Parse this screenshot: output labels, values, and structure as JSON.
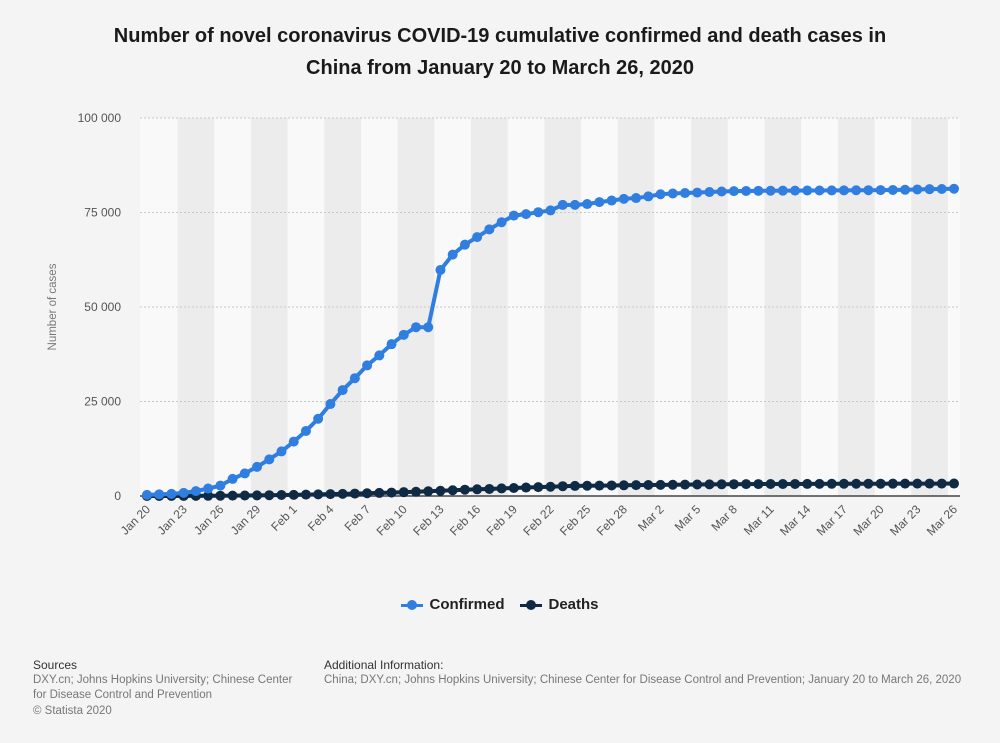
{
  "title_line1": "Number of novel coronavirus COVID-19 cumulative confirmed and death cases in",
  "title_line2": "China from January 20 to March 26, 2020",
  "footer": {
    "sources_heading": "Sources",
    "sources_text": "DXY.cn; Johns Hopkins University; Chinese Center for Disease Control and Prevention",
    "copyright": "© Statista 2020",
    "info_heading": "Additional Information:",
    "info_text": "China; DXY.cn; Johns Hopkins University; Chinese Center for Disease Control and Prevention; January 20 to March 26, 2020"
  },
  "colors": {
    "confirmed": "#2f7ee0",
    "deaths": "#0f2a44",
    "band": "#ececec",
    "grid": "#c8c8c8",
    "axis": "#222222"
  },
  "chart_data": {
    "type": "line",
    "ylabel": "Number of cases",
    "xlabel": "",
    "ylim": [
      0,
      100000
    ],
    "yticks": [
      0,
      25000,
      50000,
      75000,
      100000
    ],
    "ytick_labels": [
      "0",
      "25 000",
      "50 000",
      "75 000",
      "100 000"
    ],
    "grid": true,
    "legend_position": "bottom-center",
    "tick_labels": [
      "Jan 20",
      "Jan 23",
      "Jan 26",
      "Jan 29",
      "Feb 1",
      "Feb 4",
      "Feb 7",
      "Feb 10",
      "Feb 13",
      "Feb 16",
      "Feb 19",
      "Feb 22",
      "Feb 25",
      "Feb 28",
      "Mar 2",
      "Mar 5",
      "Mar 8",
      "Mar 11",
      "Mar 14",
      "Mar 17",
      "Mar 20",
      "Mar 23",
      "Mar 26"
    ],
    "categories": [
      "Jan 20",
      "Jan 21",
      "Jan 22",
      "Jan 23",
      "Jan 24",
      "Jan 25",
      "Jan 26",
      "Jan 27",
      "Jan 28",
      "Jan 29",
      "Jan 30",
      "Jan 31",
      "Feb 1",
      "Feb 2",
      "Feb 3",
      "Feb 4",
      "Feb 5",
      "Feb 6",
      "Feb 7",
      "Feb 8",
      "Feb 9",
      "Feb 10",
      "Feb 11",
      "Feb 12",
      "Feb 13",
      "Feb 14",
      "Feb 15",
      "Feb 16",
      "Feb 17",
      "Feb 18",
      "Feb 19",
      "Feb 20",
      "Feb 21",
      "Feb 22",
      "Feb 23",
      "Feb 24",
      "Feb 25",
      "Feb 26",
      "Feb 27",
      "Feb 28",
      "Feb 29",
      "Mar 1",
      "Mar 2",
      "Mar 3",
      "Mar 4",
      "Mar 5",
      "Mar 6",
      "Mar 7",
      "Mar 8",
      "Mar 9",
      "Mar 10",
      "Mar 11",
      "Mar 12",
      "Mar 13",
      "Mar 14",
      "Mar 15",
      "Mar 16",
      "Mar 17",
      "Mar 18",
      "Mar 19",
      "Mar 20",
      "Mar 21",
      "Mar 22",
      "Mar 23",
      "Mar 24",
      "Mar 25",
      "Mar 26"
    ],
    "series": [
      {
        "name": "Confirmed",
        "values": [
          291,
          440,
          571,
          830,
          1287,
          1975,
          2744,
          4515,
          5974,
          7711,
          9692,
          11791,
          14380,
          17205,
          20438,
          24324,
          28018,
          31161,
          34546,
          37198,
          40171,
          42638,
          44653,
          44653,
          59804,
          63851,
          66492,
          68500,
          70548,
          72436,
          74185,
          74576,
          75077,
          75550,
          77001,
          77022,
          77241,
          77754,
          78166,
          78600,
          78824,
          79251,
          79824,
          80026,
          80151,
          80270,
          80409,
          80552,
          80651,
          80695,
          80735,
          80754,
          80778,
          80793,
          80813,
          80824,
          80844,
          80860,
          80881,
          80894,
          80928,
          80967,
          81008,
          81093,
          81171,
          81218,
          81285
        ]
      },
      {
        "name": "Deaths",
        "values": [
          6,
          9,
          17,
          25,
          41,
          56,
          80,
          106,
          132,
          170,
          213,
          259,
          304,
          361,
          425,
          490,
          563,
          636,
          722,
          811,
          908,
          1016,
          1113,
          1259,
          1380,
          1523,
          1665,
          1770,
          1868,
          2004,
          2118,
          2236,
          2345,
          2442,
          2592,
          2663,
          2715,
          2744,
          2788,
          2835,
          2870,
          2912,
          2943,
          2981,
          3012,
          3042,
          3070,
          3097,
          3119,
          3136,
          3158,
          3169,
          3176,
          3189,
          3199,
          3213,
          3226,
          3237,
          3245,
          3249,
          3253,
          3261,
          3270,
          3277,
          3281,
          3287,
          3292
        ]
      }
    ]
  }
}
